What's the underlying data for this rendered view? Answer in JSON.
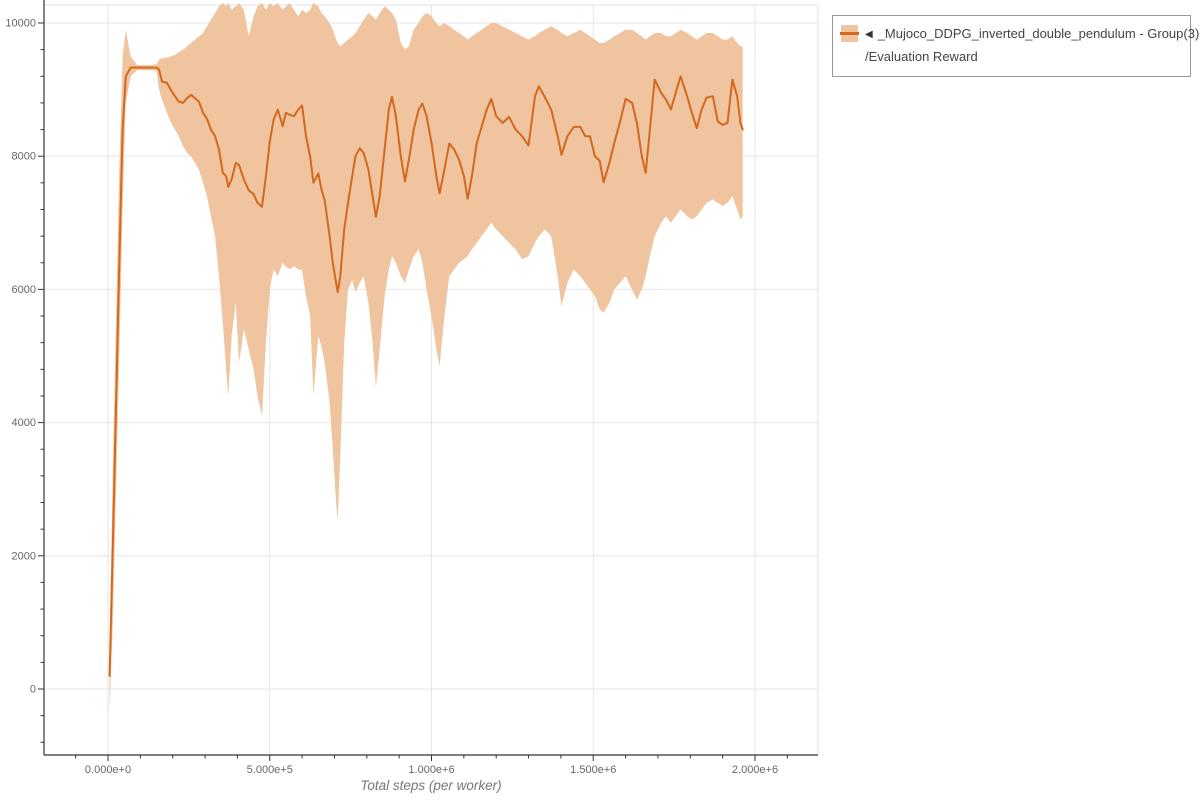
{
  "page": {
    "background": "#ffffff"
  },
  "legend": {
    "collapse_icon": "◀",
    "series_name": "_Mujoco_DDPG_inverted_double_pendulum - Group(3)",
    "metric_name": "/Evaluation Reward",
    "border_color": "#999999"
  },
  "colors": {
    "mean_line": "#d2691e",
    "band_fill": "#f0c49e",
    "grid": "#e5e5e5",
    "plot_border": "#e0e0e0",
    "axis": "#333333",
    "tick_label": "#666666",
    "axis_title": "#777777"
  },
  "chart_data": {
    "type": "line",
    "title": "",
    "xlabel": "Total steps (per worker)",
    "ylabel": "",
    "grid": true,
    "legend_position": "top-right",
    "xlim": [
      -200000,
      2195000
    ],
    "ylim": [
      -990,
      10340
    ],
    "x_ticks": {
      "values": [
        0,
        500000,
        1000000,
        1500000,
        2000000
      ],
      "labels": [
        "0.000e+0",
        "5.000e+5",
        "1.000e+6",
        "1.500e+6",
        "2.000e+6"
      ]
    },
    "y_ticks": {
      "values": [
        0,
        2000,
        4000,
        6000,
        8000,
        10000
      ],
      "labels": [
        "0",
        "2000",
        "4000",
        "6000",
        "8000",
        "10000"
      ]
    },
    "x_minor": {
      "start": -100000,
      "end": 2100000,
      "step": 100000
    },
    "y_minor": {
      "start": -800,
      "end": 9600,
      "step": 400
    },
    "series": [
      {
        "name": "_Mujoco_DDPG_inverted_double_pendulum - Group(3) /Evaluation Reward",
        "color": "#d2691e",
        "band_color": "#f0c49e",
        "x": [
          5000,
          15000,
          25000,
          35000,
          45000,
          55000,
          70000,
          90000,
          110000,
          130000,
          150000,
          158000,
          167000,
          182000,
          195000,
          207000,
          219000,
          232000,
          244000,
          257000,
          269000,
          281000,
          294000,
          306000,
          318000,
          331000,
          343000,
          355000,
          365000,
          372000,
          382000,
          395000,
          405000,
          420000,
          435000,
          450000,
          462000,
          476000,
          488000,
          500000,
          512000,
          525000,
          540000,
          550000,
          562000,
          575000,
          588000,
          600000,
          612000,
          625000,
          635000,
          650000,
          660000,
          670000,
          685000,
          695000,
          705000,
          710000,
          718000,
          730000,
          742000,
          755000,
          765000,
          778000,
          790000,
          805000,
          818000,
          828000,
          840000,
          855000,
          868000,
          878000,
          890000,
          905000,
          918000,
          930000,
          945000,
          960000,
          972000,
          985000,
          1000000,
          1015000,
          1025000,
          1040000,
          1055000,
          1070000,
          1085000,
          1100000,
          1112000,
          1125000,
          1140000,
          1155000,
          1170000,
          1185000,
          1200000,
          1220000,
          1240000,
          1260000,
          1280000,
          1300000,
          1320000,
          1332000,
          1350000,
          1370000,
          1390000,
          1402000,
          1420000,
          1440000,
          1460000,
          1475000,
          1490000,
          1505000,
          1520000,
          1532000,
          1550000,
          1565000,
          1582000,
          1600000,
          1620000,
          1635000,
          1650000,
          1662000,
          1675000,
          1690000,
          1710000,
          1725000,
          1740000,
          1755000,
          1770000,
          1790000,
          1805000,
          1820000,
          1835000,
          1850000,
          1870000,
          1885000,
          1900000,
          1915000,
          1930000,
          1945000,
          1955000,
          1962000
        ],
        "mean": [
          200,
          2200,
          4300,
          6400,
          8400,
          9200,
          9330,
          9330,
          9330,
          9330,
          9330,
          9300,
          9120,
          9100,
          8990,
          8900,
          8820,
          8800,
          8870,
          8920,
          8870,
          8820,
          8650,
          8560,
          8400,
          8300,
          8100,
          7750,
          7700,
          7540,
          7650,
          7900,
          7870,
          7650,
          7490,
          7430,
          7300,
          7240,
          7700,
          8220,
          8550,
          8700,
          8450,
          8650,
          8620,
          8600,
          8700,
          8760,
          8300,
          7990,
          7600,
          7740,
          7500,
          7340,
          6800,
          6400,
          6100,
          5960,
          6200,
          6900,
          7300,
          7700,
          8000,
          8120,
          8050,
          7800,
          7400,
          7090,
          7400,
          8100,
          8700,
          8890,
          8600,
          8000,
          7620,
          7950,
          8400,
          8700,
          8790,
          8600,
          8200,
          7700,
          7440,
          7800,
          8190,
          8100,
          7950,
          7700,
          7360,
          7700,
          8200,
          8440,
          8690,
          8860,
          8600,
          8500,
          8590,
          8400,
          8300,
          8160,
          8900,
          9050,
          8890,
          8700,
          8300,
          8020,
          8300,
          8440,
          8440,
          8300,
          8300,
          8000,
          7930,
          7610,
          7900,
          8200,
          8500,
          8860,
          8800,
          8500,
          8000,
          7750,
          8400,
          9150,
          8950,
          8850,
          8700,
          8950,
          9200,
          8900,
          8650,
          8420,
          8700,
          8880,
          8900,
          8520,
          8470,
          8500,
          9150,
          8900,
          8500,
          8400
        ],
        "lower": [
          -350,
          1000,
          3000,
          5000,
          7200,
          8800,
          9200,
          9290,
          9290,
          9290,
          9280,
          9000,
          8850,
          8650,
          8500,
          8400,
          8300,
          8150,
          8050,
          8000,
          7900,
          7800,
          7600,
          7400,
          7100,
          6800,
          6200,
          5500,
          4800,
          4400,
          5300,
          5800,
          4900,
          5400,
          5100,
          4800,
          4400,
          4100,
          5200,
          6000,
          6300,
          6200,
          6400,
          6340,
          6300,
          6350,
          6300,
          6290,
          5900,
          5600,
          4400,
          5300,
          5140,
          4900,
          4300,
          3600,
          2800,
          2540,
          3500,
          5200,
          6000,
          6140,
          5960,
          6100,
          6200,
          5800,
          5200,
          4530,
          5100,
          5900,
          6300,
          6500,
          6400,
          6200,
          6100,
          6300,
          6500,
          6600,
          6400,
          6000,
          5600,
          5100,
          4850,
          5600,
          6200,
          6300,
          6400,
          6450,
          6500,
          6600,
          6700,
          6800,
          6900,
          7000,
          6900,
          6800,
          6700,
          6600,
          6450,
          6500,
          6700,
          6800,
          6900,
          6800,
          6200,
          5750,
          6100,
          6300,
          6200,
          6100,
          6000,
          5900,
          5700,
          5650,
          5800,
          6000,
          6100,
          6200,
          6000,
          5850,
          6000,
          6200,
          6500,
          6800,
          7000,
          7100,
          7000,
          7100,
          7200,
          7100,
          7050,
          7100,
          7200,
          7300,
          7350,
          7300,
          7250,
          7300,
          7400,
          7200,
          7050,
          7100
        ],
        "upper": [
          650,
          3400,
          5600,
          7800,
          9500,
          9900,
          9500,
          9370,
          9370,
          9370,
          9380,
          9450,
          9470,
          9480,
          9500,
          9520,
          9560,
          9600,
          9650,
          9700,
          9750,
          9800,
          9850,
          9950,
          10050,
          10150,
          10250,
          10300,
          10250,
          10300,
          10200,
          10250,
          10300,
          10200,
          9800,
          10100,
          10250,
          10300,
          10200,
          10300,
          10250,
          10300,
          10200,
          10250,
          10300,
          10200,
          10100,
          10200,
          10150,
          10200,
          10300,
          10250,
          10150,
          10100,
          10000,
          9900,
          9750,
          9700,
          9650,
          9700,
          9750,
          9800,
          9850,
          9950,
          10050,
          10150,
          10100,
          10050,
          10150,
          10250,
          10200,
          10150,
          10050,
          9700,
          9600,
          9650,
          9900,
          10000,
          10100,
          10150,
          10100,
          10000,
          9950,
          10000,
          9950,
          9900,
          9850,
          9800,
          9750,
          9800,
          9850,
          9900,
          9950,
          10000,
          10000,
          9950,
          9900,
          9850,
          9800,
          9750,
          9800,
          9850,
          9900,
          9950,
          9900,
          9850,
          9800,
          9850,
          9900,
          9850,
          9800,
          9750,
          9700,
          9700,
          9750,
          9800,
          9850,
          9900,
          9900,
          9850,
          9800,
          9750,
          9800,
          9850,
          9850,
          9800,
          9800,
          9850,
          9900,
          9850,
          9800,
          9750,
          9800,
          9850,
          9850,
          9800,
          9750,
          9750,
          9800,
          9700,
          9650,
          9640
        ]
      }
    ]
  }
}
